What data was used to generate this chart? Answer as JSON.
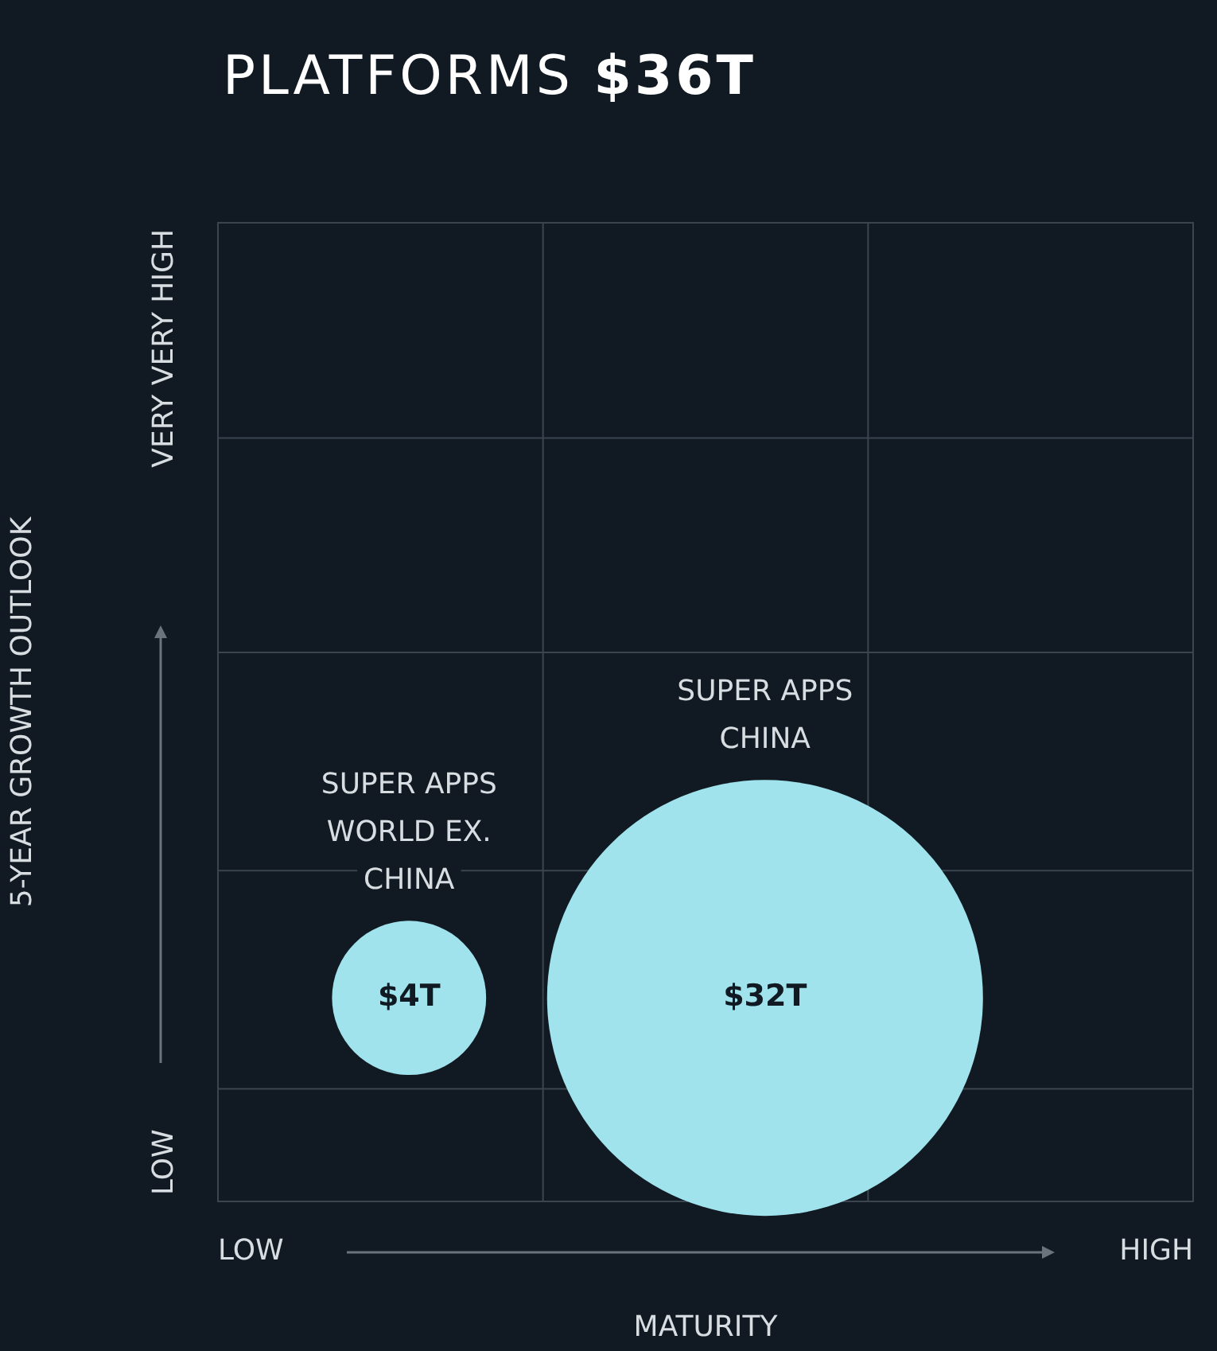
{
  "chart_data": {
    "type": "other",
    "title": "PLATFORMS $36T",
    "xlabel": "MATURITY",
    "ylabel": "5-YEAR GROWTH OUTLOOK",
    "categories": [
      "SUPER APPS WORLD EX. CHINA",
      "SUPER APPS CHINA"
    ],
    "values": [
      4,
      32
    ],
    "value_labels": [
      "$4T",
      "$32T"
    ],
    "colors": [
      "#a0e3ec",
      "#a0e3ec"
    ],
    "annotations": [
      "LOW",
      "HIGH",
      "LOW",
      "VERY VERY HIGH"
    ],
    "legend": false
  }
}
